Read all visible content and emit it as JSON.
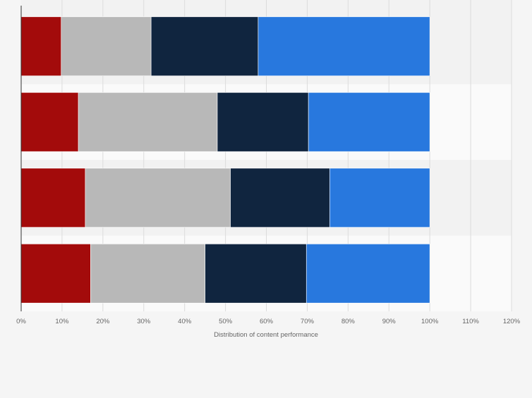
{
  "chart_data": {
    "type": "bar",
    "orientation": "horizontal",
    "stacked": true,
    "categories": [
      "",
      "",
      "",
      ""
    ],
    "series": [
      {
        "values": [
          9.8,
          14.0,
          15.7,
          17.0
        ],
        "color": "#a30b0b"
      },
      {
        "values": [
          22.0,
          34.0,
          35.5,
          28.0
        ],
        "color": "#b8b8b8"
      },
      {
        "values": [
          26.2,
          22.3,
          24.3,
          24.8
        ],
        "color": "#10253f"
      },
      {
        "values": [
          42.0,
          29.7,
          24.5,
          30.2
        ],
        "color": "#2878de"
      }
    ],
    "title": "",
    "xlabel": "Distribution of content performance",
    "ylabel": "",
    "xlim": [
      0,
      120
    ],
    "xticks": [
      0,
      10,
      20,
      30,
      40,
      50,
      60,
      70,
      80,
      90,
      100,
      110,
      120
    ],
    "tick_format": "percent",
    "grid": true,
    "legend": "none"
  }
}
